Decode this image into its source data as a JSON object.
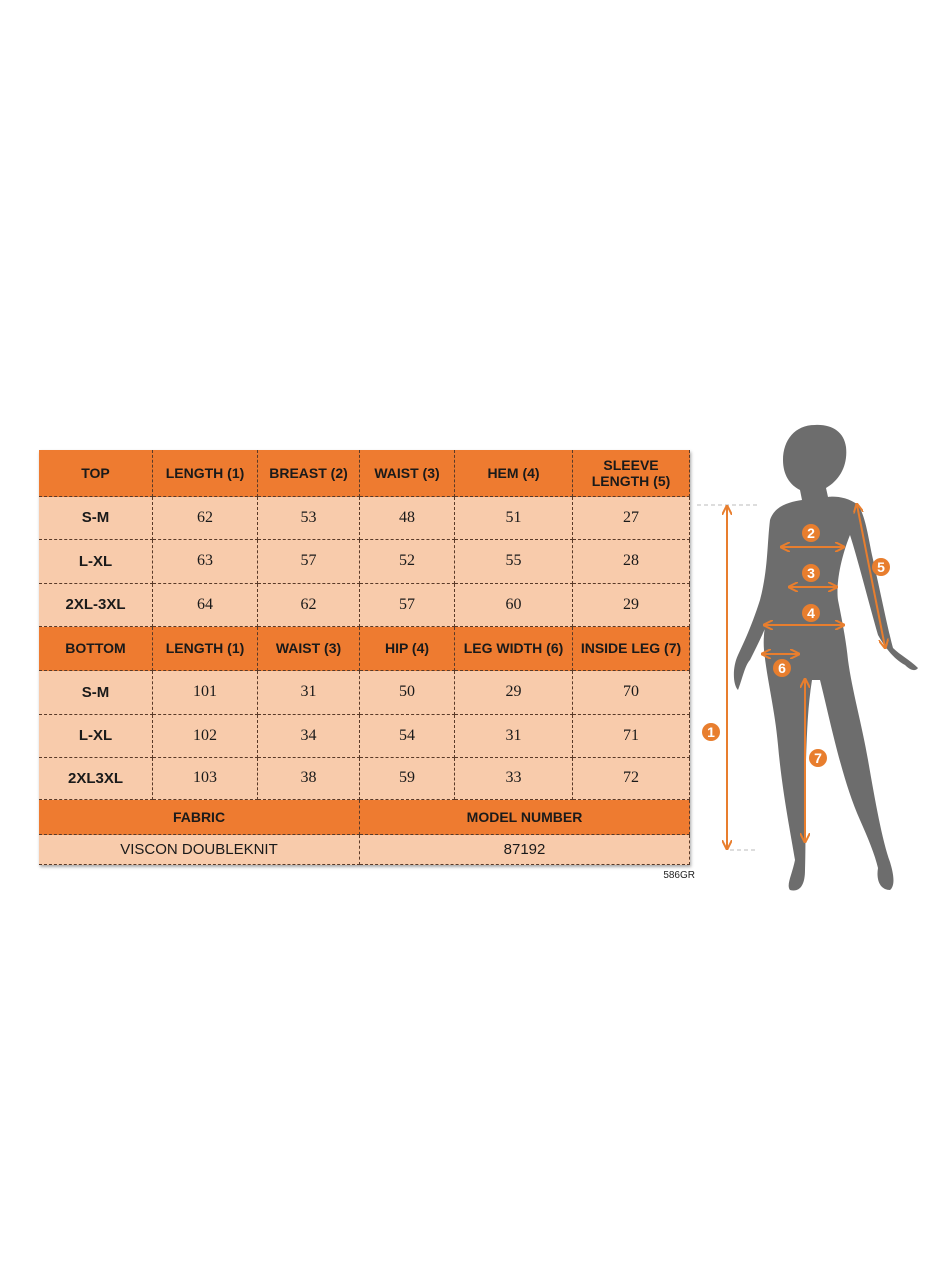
{
  "top_table": {
    "headers": [
      "TOP",
      "LENGTH (1)",
      "BREAST (2)",
      "WAIST (3)",
      "HEM (4)",
      "SLEEVE LENGTH (5)"
    ],
    "rows": [
      [
        "S-M",
        "62",
        "53",
        "48",
        "51",
        "27"
      ],
      [
        "L-XL",
        "63",
        "57",
        "52",
        "55",
        "28"
      ],
      [
        "2XL-3XL",
        "64",
        "62",
        "57",
        "60",
        "29"
      ]
    ]
  },
  "bottom_table": {
    "headers": [
      "BOTTOM",
      "LENGTH (1)",
      "WAIST (3)",
      "HIP (4)",
      "LEG WIDTH (6)",
      "INSIDE LEG (7)"
    ],
    "rows": [
      [
        "S-M",
        "101",
        "31",
        "50",
        "29",
        "70"
      ],
      [
        "L-XL",
        "102",
        "34",
        "54",
        "31",
        "71"
      ],
      [
        "2XL3XL",
        "103",
        "38",
        "59",
        "33",
        "72"
      ]
    ]
  },
  "fabric": {
    "label": "FABRIC",
    "value": "VISCON DOUBLEKNIT"
  },
  "model": {
    "label": "MODEL NUMBER",
    "value": "87192"
  },
  "product_code": "586GR",
  "figure": {
    "markers": [
      "1",
      "2",
      "3",
      "4",
      "5",
      "6",
      "7"
    ]
  },
  "colors": {
    "header": "#ee7b30",
    "body": "#f8cbab",
    "silhouette": "#6d6d6d",
    "accent": "#e87e2e"
  }
}
